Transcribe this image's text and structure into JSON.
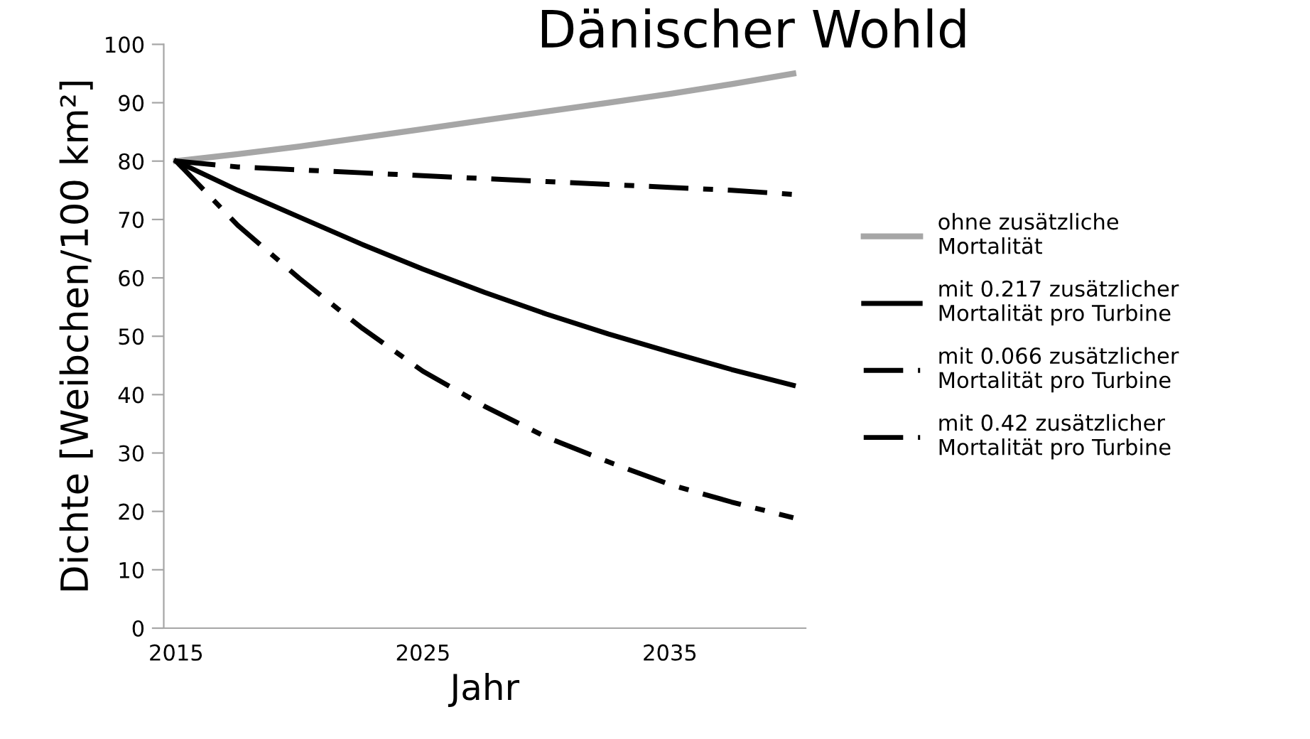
{
  "chart_data": {
    "type": "line",
    "title": "Dänischer Wohld",
    "xlabel": "Jahr",
    "ylabel": "Dichte [Weibchen/100 km²]",
    "x": [
      2015,
      2017.5,
      2020,
      2022.5,
      2025,
      2027.5,
      2030,
      2032.5,
      2035,
      2037.5,
      2040
    ],
    "series": [
      {
        "name": "ohne zusätzliche\nMortalität",
        "color": "#a6a6a6",
        "line_style": "solid",
        "values": [
          80,
          81.2,
          82.5,
          84,
          85.5,
          87,
          88.5,
          90,
          91.5,
          93.2,
          95
        ]
      },
      {
        "name": "mit 0.217 zusätzlicher\nMortalität pro Turbine",
        "color": "#000000",
        "line_style": "solid",
        "values": [
          80,
          75,
          70.4,
          65.8,
          61.5,
          57.5,
          53.8,
          50.4,
          47.3,
          44.3,
          41.6
        ]
      },
      {
        "name": "mit 0.066 zusätzlicher\nMortalität pro Turbine",
        "color": "#000000",
        "line_style": "dashdot",
        "values": [
          80,
          79,
          78.5,
          78,
          77.5,
          77,
          76.5,
          76,
          75.5,
          75,
          74.3
        ]
      },
      {
        "name": "mit 0.42 zusätzlicher\nMortalität pro Turbine",
        "color": "#000000",
        "line_style": "dashdot",
        "values": [
          80,
          69,
          59.9,
          51.5,
          44,
          38,
          32.7,
          28.5,
          24.6,
          21.6,
          18.9
        ]
      }
    ],
    "xlim": [
      2014.5,
      2040.5
    ],
    "xticks": [
      2015,
      2025,
      2035
    ],
    "ylim": [
      0,
      100
    ],
    "yticks": [
      0,
      10,
      20,
      30,
      40,
      50,
      60,
      70,
      80,
      90,
      100
    ],
    "grid": false,
    "legend": "right",
    "marker": "none"
  }
}
